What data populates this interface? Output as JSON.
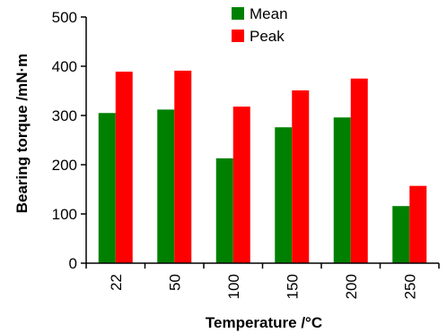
{
  "chart_data": {
    "type": "bar",
    "title": "",
    "xlabel": "Temperature /°C",
    "ylabel": "Bearing torque /mN·m",
    "categories": [
      "22",
      "50",
      "100",
      "150",
      "200",
      "250"
    ],
    "series": [
      {
        "name": "Mean",
        "color": "#008000",
        "values": [
          305,
          312,
          213,
          276,
          296,
          116
        ]
      },
      {
        "name": "Peak",
        "color": "#ff0000",
        "values": [
          389,
          391,
          318,
          351,
          375,
          157
        ]
      }
    ],
    "ylim": [
      0,
      500
    ],
    "yticks": [
      "0",
      "100",
      "200",
      "300",
      "400",
      "500"
    ],
    "grid": false,
    "legend_position": "top-center"
  }
}
